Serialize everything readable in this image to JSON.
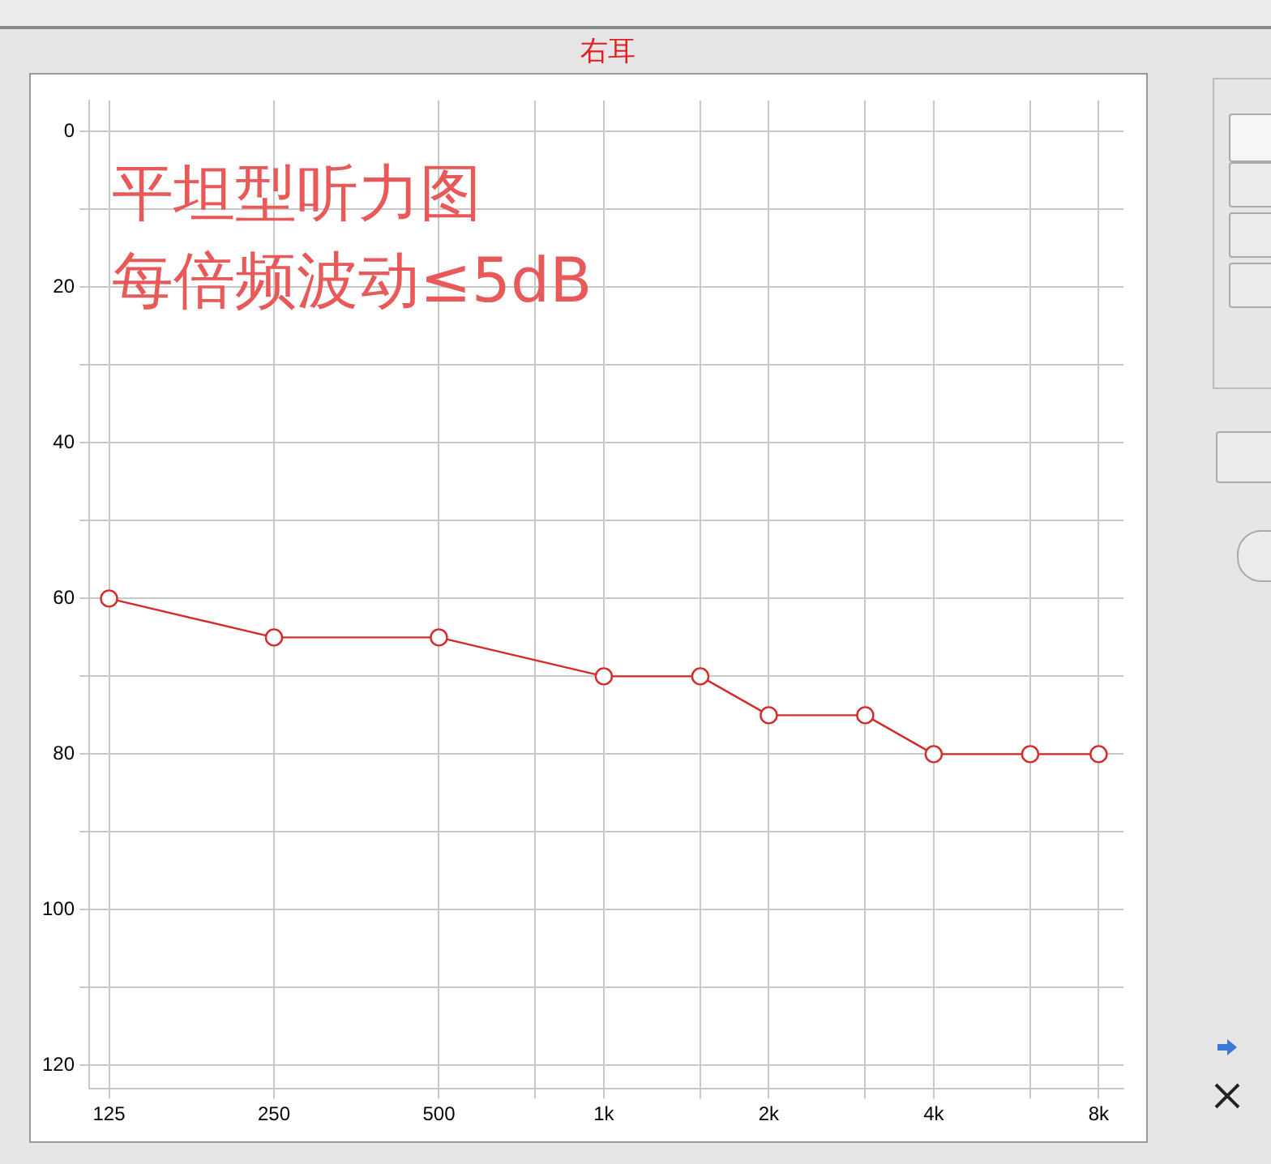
{
  "chart_data": {
    "type": "line",
    "title": "右耳",
    "annotations": [
      "平坦型听力图",
      "每倍频波动≤5dB"
    ],
    "x": [
      125,
      250,
      500,
      1000,
      1500,
      2000,
      3000,
      4000,
      6000,
      8000
    ],
    "series": [
      {
        "color": "#d42a2a",
        "values": [
          60,
          65,
          65,
          70,
          70,
          75,
          75,
          80,
          80,
          80
        ]
      }
    ],
    "log": "x",
    "xlim": [
      115,
      8880
    ],
    "xticks": [
      125,
      250,
      500,
      {
        "value": 750,
        "label": null
      },
      {
        "value": 1000,
        "label": "1k"
      },
      {
        "value": 1500,
        "label": null
      },
      {
        "value": 2000,
        "label": "2k"
      },
      {
        "value": 3000,
        "label": null
      },
      {
        "value": 4000,
        "label": "4k"
      },
      {
        "value": 6000,
        "label": null
      },
      {
        "value": 8000,
        "label": "8k"
      }
    ],
    "ylim": [
      123,
      -4
    ],
    "yticks": [
      0,
      {
        "value": 10,
        "label": null
      },
      20,
      {
        "value": 30,
        "label": null
      },
      40,
      {
        "value": 50,
        "label": null
      },
      60,
      {
        "value": 70,
        "label": null
      },
      80,
      {
        "value": 90,
        "label": null
      },
      100,
      {
        "value": 110,
        "label": null
      },
      120
    ],
    "grid": true,
    "legend": false,
    "marker": "circle",
    "line_style": "solid"
  }
}
